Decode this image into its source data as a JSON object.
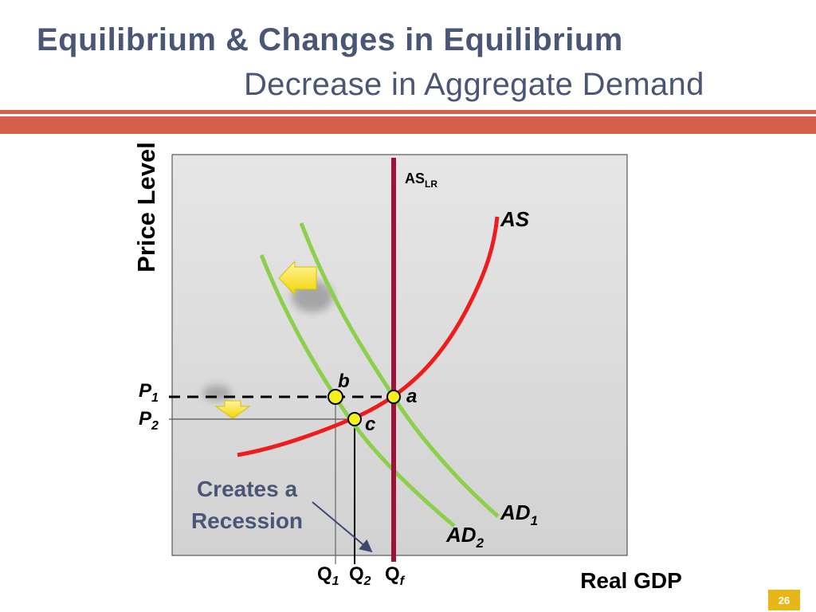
{
  "slide": {
    "title": "Equilibrium & Changes in Equilibrium",
    "subtitle": "Decrease in Aggregate Demand",
    "page_number": "26"
  },
  "diagram": {
    "y_axis_label": "Price Level",
    "x_axis_label": "Real GDP",
    "curves": {
      "as_lr": {
        "main": "AS",
        "sub": "LR"
      },
      "as": "AS",
      "ad1": {
        "main": "AD",
        "sub": "1"
      },
      "ad2": {
        "main": "AD",
        "sub": "2"
      }
    },
    "points": {
      "a": "a",
      "b": "b",
      "c": "c"
    },
    "price_labels": {
      "p1": {
        "main": "P",
        "sub": "1"
      },
      "p2": {
        "main": "P",
        "sub": "2"
      }
    },
    "quantity_labels": {
      "q1": {
        "main": "Q",
        "sub": "1"
      },
      "q2": {
        "main": "Q",
        "sub": "2"
      },
      "qf": {
        "main": "Q",
        "sub": "f"
      }
    },
    "annotation": {
      "line1": "Creates a",
      "line2": "Recession"
    },
    "colors": {
      "as_lr": "#a0103a",
      "as": "#ee1c1c",
      "ad": "#8ccf4a",
      "points": "#f5f01c",
      "arrows": "#f7e53a",
      "title": "#4a5676",
      "band": "#d45f4a"
    }
  }
}
